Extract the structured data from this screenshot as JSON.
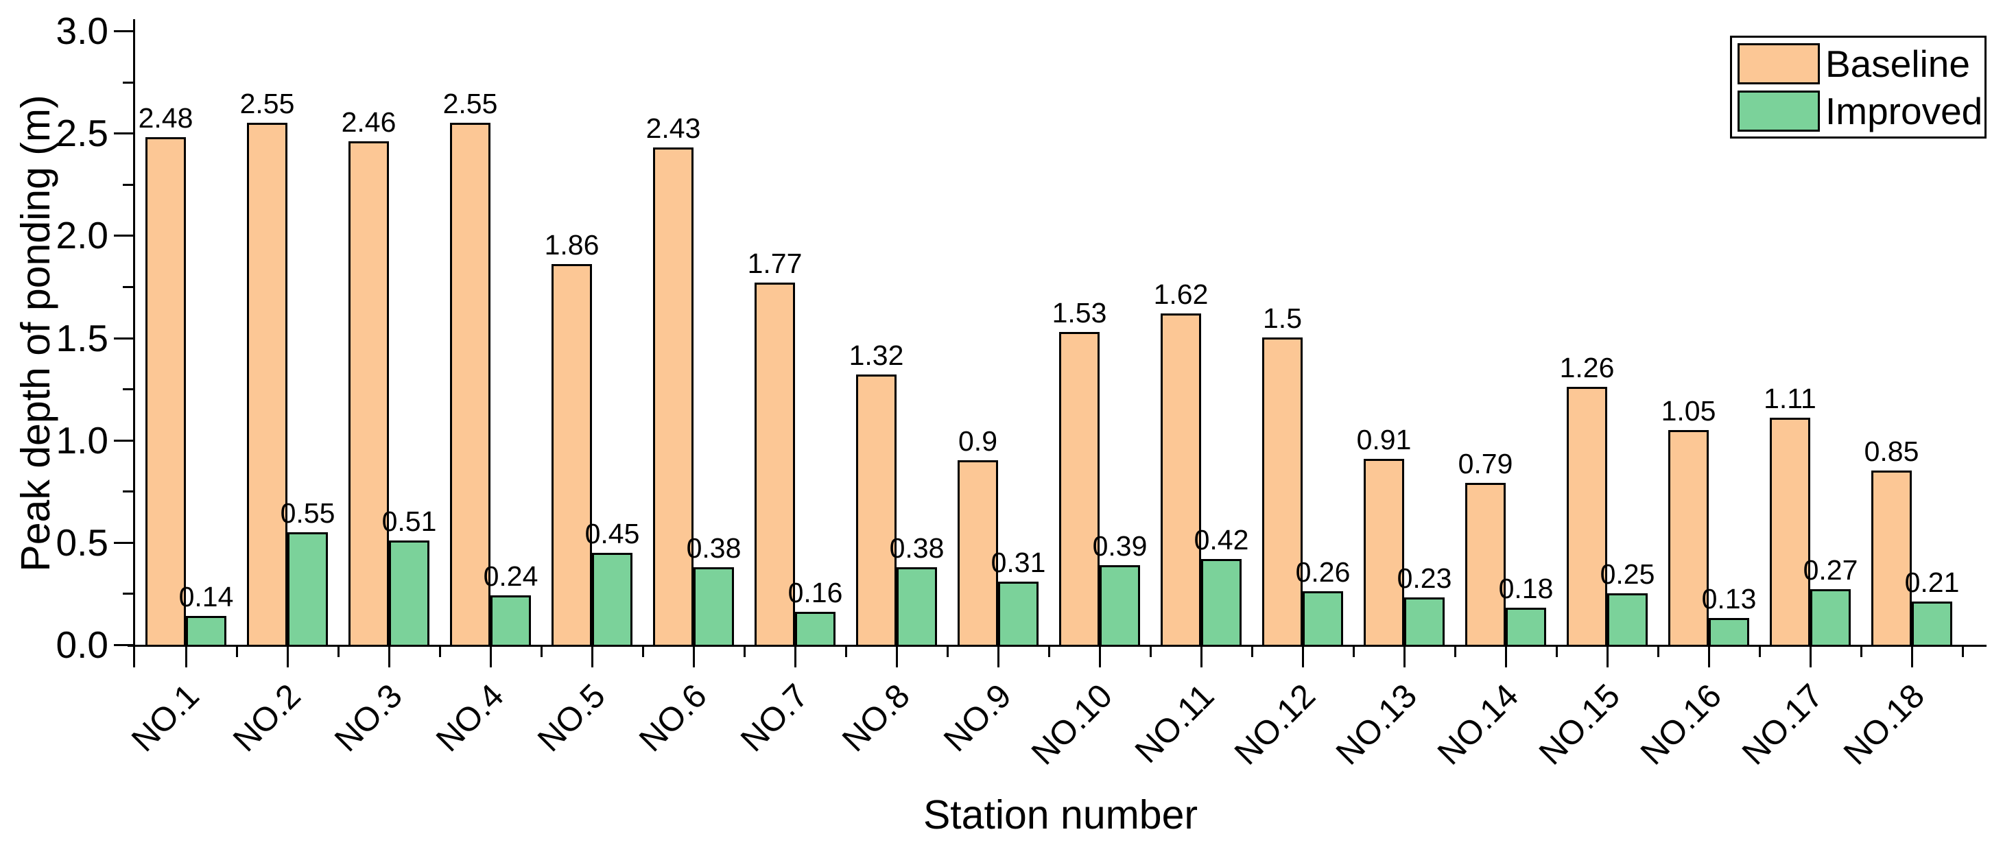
{
  "figure": {
    "background": "#ffffff",
    "outline_color": "#000000",
    "y_axis": {
      "title": "Peak depth of ponding (m)",
      "tick_labels": [
        "0.0",
        "0.5",
        "1.0",
        "1.5",
        "2.0",
        "2.5",
        "3.0"
      ],
      "major_step": 0.5,
      "minor_step": 0.25
    },
    "x_axis": {
      "title": "Station number"
    }
  },
  "chart_data": {
    "type": "bar",
    "title": "",
    "xlabel": "Station number",
    "ylabel": "Peak depth of ponding (m)",
    "ylim": [
      0,
      3.0
    ],
    "grid": false,
    "value_labels": true,
    "legend_position": "top-right",
    "categories": [
      "NO.1",
      "NO.2",
      "NO.3",
      "NO.4",
      "NO.5",
      "NO.6",
      "NO.7",
      "NO.8",
      "NO.9",
      "NO.10",
      "NO.11",
      "NO.12",
      "NO.13",
      "NO.14",
      "NO.15",
      "NO.16",
      "NO.17",
      "NO.18"
    ],
    "series": [
      {
        "name": "Baseline",
        "color": "#FCC795",
        "values": [
          2.48,
          2.55,
          2.46,
          2.55,
          1.86,
          2.43,
          1.77,
          1.32,
          0.9,
          1.53,
          1.62,
          1.5,
          0.91,
          0.79,
          1.26,
          1.05,
          1.11,
          0.85
        ]
      },
      {
        "name": "Improved",
        "color": "#7BD29A",
        "values": [
          0.14,
          0.55,
          0.51,
          0.24,
          0.45,
          0.38,
          0.16,
          0.38,
          0.31,
          0.39,
          0.42,
          0.26,
          0.23,
          0.18,
          0.25,
          0.13,
          0.27,
          0.21
        ]
      }
    ]
  }
}
